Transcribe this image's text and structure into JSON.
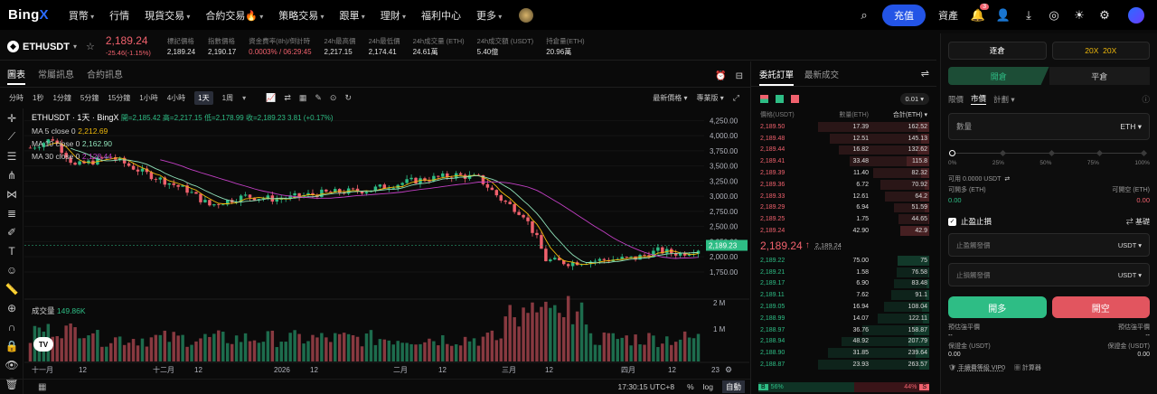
{
  "nav": {
    "logo_a": "Bing",
    "logo_b": "X",
    "items": [
      "買幣",
      "行情",
      "現貨交易",
      "合約交易🔥",
      "策略交易",
      "跟單",
      "理財",
      "福利中心",
      "更多"
    ],
    "deposit": "充值",
    "assets": "資產",
    "notif_badge": "3"
  },
  "ticker": {
    "pair": "ETHUSDT",
    "price": "2,189.24",
    "change": "-25.46(-1.15%)",
    "stats": [
      {
        "l": "標記價格",
        "v": "2,189.24"
      },
      {
        "l": "指數價格",
        "v": "2,190.17"
      },
      {
        "l": "資金費率(8h)/倒計時",
        "v": "0.0003% / 06:29:45"
      },
      {
        "l": "24h最高價",
        "v": "2,217.15"
      },
      {
        "l": "24h最低價",
        "v": "2,174.41"
      },
      {
        "l": "24h成交量 (ETH)",
        "v": "24.61萬"
      },
      {
        "l": "24h成交額 (USDT)",
        "v": "5.40億"
      },
      {
        "l": "持倉量(ETH)",
        "v": "20.96萬"
      }
    ]
  },
  "chart_tabs": [
    "圖表",
    "常屬訊息",
    "合約訊息"
  ],
  "timeframes": [
    "分時",
    "1秒",
    "1分鐘",
    "5分鐘",
    "15分鐘",
    "1小時",
    "4小時",
    "1天",
    "1周"
  ],
  "tf_right": [
    "最新價格",
    "專業版"
  ],
  "legend": {
    "symbol": "ETHUSDT · 1天 · BingX",
    "ohlc": "開=2,185.42 高=2,217.15 低=2,178.99 收=2,189.23 3.81 (+0.17%)",
    "ma": [
      {
        "label": "MA 5 close 0",
        "value": "2,212.69",
        "color": "#f0b90b"
      },
      {
        "label": "MA 10 close 0",
        "value": "2,162.90",
        "color": "#8fe0b8"
      },
      {
        "label": "MA 30 close 0",
        "value": "2,128.44",
        "color": "#c23fc4"
      }
    ],
    "vol_label": "成交量",
    "vol_value": "149.86K"
  },
  "chart_data": {
    "type": "candlestick",
    "yticks": [
      "4,250.00",
      "4,000.00",
      "3,750.00",
      "3,500.00",
      "3,250.00",
      "3,000.00",
      "2,750.00",
      "2,500.00",
      "2,250.00",
      "2,000.00",
      "1,750.00"
    ],
    "ylim": [
      1600,
      4300
    ],
    "vol_ticks": [
      "2 M",
      "1 M"
    ],
    "xticks": [
      "十一月",
      "12",
      "十二月",
      "12",
      "2026",
      "12",
      "二月",
      "12",
      "三月",
      "12",
      "四月",
      "12",
      "23"
    ],
    "last_price": "2,189.23"
  },
  "chart_footer": {
    "time": "17:30:15 UTC+8",
    "pct": "%",
    "log": "log",
    "auto": "自動"
  },
  "book": {
    "tabs": [
      "委託訂單",
      "最新成交"
    ],
    "step": "0.01",
    "headers": [
      "價格(USDT)",
      "數量(ETH)",
      "合計(ETH)"
    ],
    "asks": [
      [
        "2,189.50",
        "17.39",
        "162.52"
      ],
      [
        "2,189.48",
        "12.51",
        "145.13"
      ],
      [
        "2,189.44",
        "16.82",
        "132.62"
      ],
      [
        "2,189.41",
        "33.48",
        "115.8"
      ],
      [
        "2,189.39",
        "11.40",
        "82.32"
      ],
      [
        "2,189.36",
        "6.72",
        "70.92"
      ],
      [
        "2,189.33",
        "12.61",
        "64.2"
      ],
      [
        "2,189.29",
        "6.94",
        "51.59"
      ],
      [
        "2,189.25",
        "1.75",
        "44.65"
      ],
      [
        "2,189.24",
        "42.90",
        "42.9"
      ]
    ],
    "mid": "2,189.24",
    "mid_arrow": "↑",
    "mid_sub": "2,189.24",
    "bids": [
      [
        "2,189.22",
        "75.00",
        "75"
      ],
      [
        "2,189.21",
        "1.58",
        "76.58"
      ],
      [
        "2,189.17",
        "6.90",
        "83.48"
      ],
      [
        "2,189.11",
        "7.62",
        "91.1"
      ],
      [
        "2,189.05",
        "16.94",
        "108.04"
      ],
      [
        "2,188.99",
        "14.07",
        "122.11"
      ],
      [
        "2,188.97",
        "36.76",
        "158.87"
      ],
      [
        "2,188.94",
        "48.92",
        "207.79"
      ],
      [
        "2,188.90",
        "31.85",
        "239.64"
      ],
      [
        "2,188.87",
        "23.93",
        "263.57"
      ]
    ],
    "ratio_b": "B",
    "ratio_b_val": "56%",
    "ratio_s_val": "44%",
    "ratio_s": "S"
  },
  "trade": {
    "mode": "逐倉",
    "lev": "20X",
    "lev2": "20X",
    "open": "開倉",
    "close": "平倉",
    "types": [
      "限價",
      "市價",
      "計劃"
    ],
    "qty": "數量",
    "unit": "ETH",
    "slider": [
      "0%",
      "25%",
      "50%",
      "75%",
      "100%"
    ],
    "avail": "可用 0.0000 USDT",
    "can_long_l": "可開多 (ETH)",
    "can_long_v": "0.00",
    "can_short_l": "可開空 (ETH)",
    "can_short_v": "0.00",
    "tpsl": "止盈止損",
    "basic": "基礎",
    "tp_ph": "止盈觸發價",
    "sl_ph": "止損觸發價",
    "tpsl_unit": "USDT",
    "long_btn": "開多",
    "short_btn": "開空",
    "liq_l": "預估強平價",
    "liq_v": "--",
    "liq_r": "預估強平價",
    "liq_rv": "--",
    "margin_l": "保證金 (USDT)",
    "margin_v": "0.00",
    "margin_r": "保證金 (USDT)",
    "margin_rv": "0.00",
    "fee": "手續費等級 VIP0",
    "calc": "計算器"
  }
}
